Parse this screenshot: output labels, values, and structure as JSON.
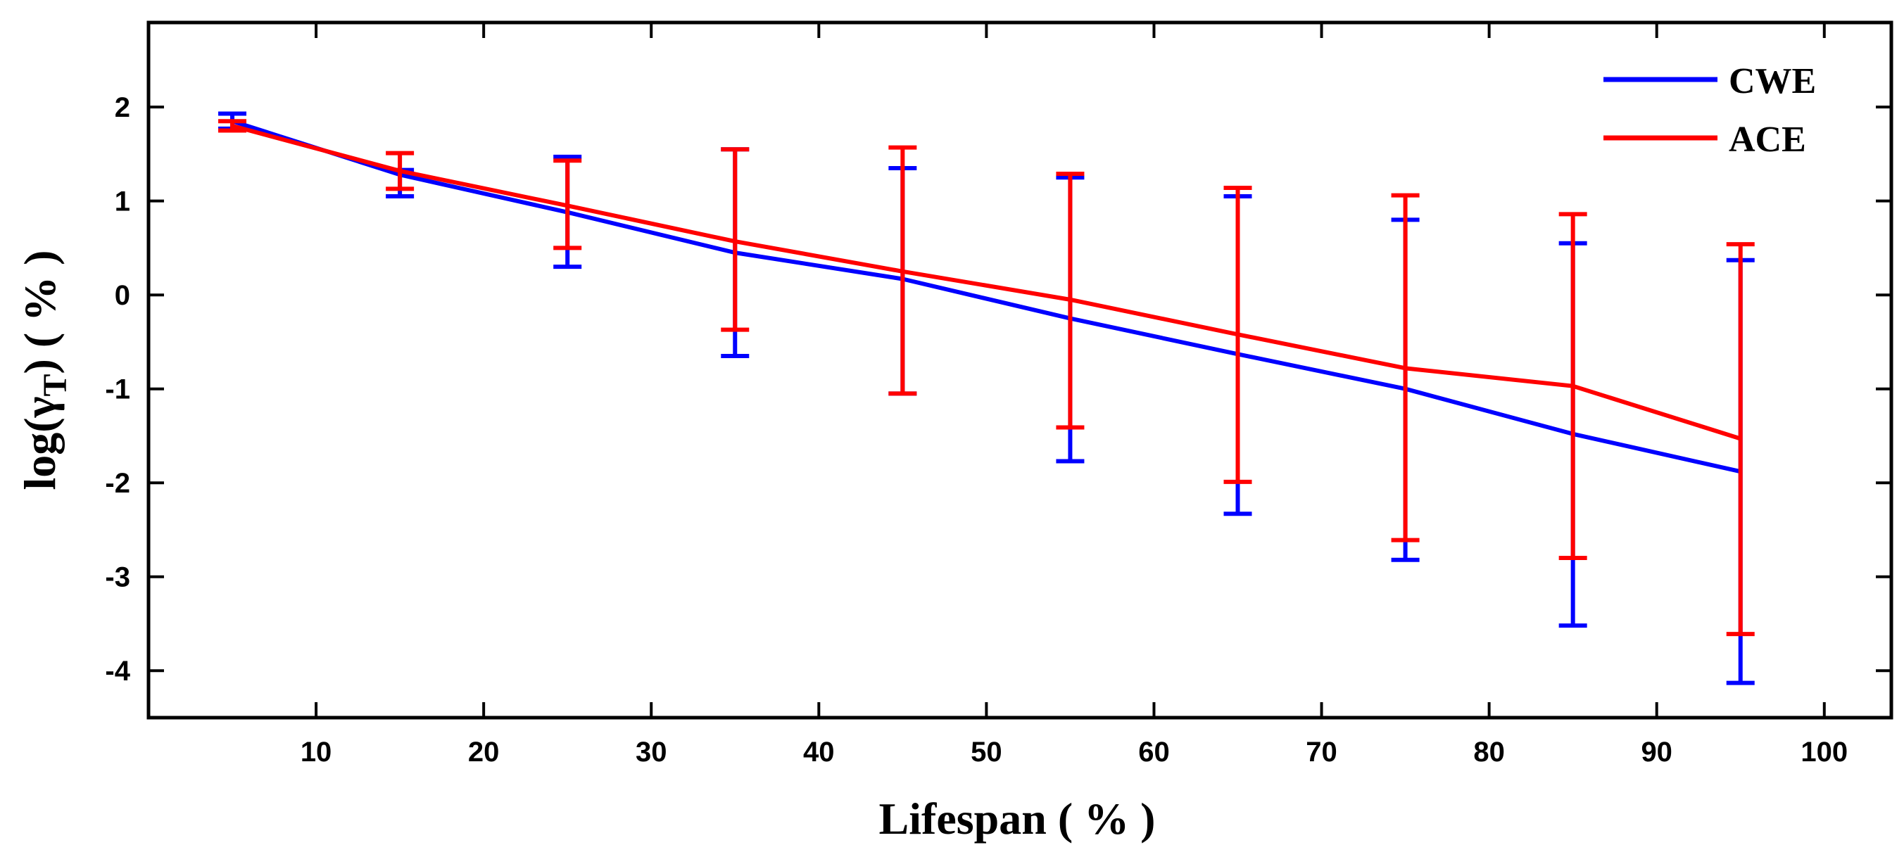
{
  "chart_data": {
    "type": "line",
    "title": "",
    "xlabel": "Lifespan ( % )",
    "ylabel": {
      "prefix": "log(γ",
      "subscript": "T",
      "suffix": ")   ( % )"
    },
    "xlim": [
      0,
      104
    ],
    "ylim": [
      -4.5,
      2.9
    ],
    "xticks": [
      10,
      20,
      30,
      40,
      50,
      60,
      70,
      80,
      90,
      100
    ],
    "yticks": [
      -4,
      -3,
      -2,
      -1,
      0,
      1,
      2
    ],
    "x": [
      5,
      15,
      25,
      35,
      45,
      55,
      65,
      75,
      85,
      95
    ],
    "series": [
      {
        "name": "CWE",
        "color": "#0000ff",
        "values": [
          1.85,
          1.28,
          0.88,
          0.45,
          0.17,
          -0.25,
          -0.63,
          -1.0,
          -1.48,
          -1.88
        ],
        "err_upper": [
          1.93,
          1.33,
          1.47,
          1.55,
          1.35,
          1.25,
          1.05,
          0.8,
          0.55,
          0.37
        ],
        "err_lower": [
          1.77,
          1.05,
          0.3,
          -0.65,
          -1.05,
          -1.77,
          -2.33,
          -2.82,
          -3.52,
          -4.13
        ]
      },
      {
        "name": "ACE",
        "color": "#ff0000",
        "values": [
          1.8,
          1.32,
          0.95,
          0.57,
          0.25,
          -0.05,
          -0.42,
          -0.78,
          -0.97,
          -1.53
        ],
        "err_upper": [
          1.85,
          1.51,
          1.43,
          1.55,
          1.57,
          1.29,
          1.14,
          1.06,
          0.86,
          0.54
        ],
        "err_lower": [
          1.75,
          1.13,
          0.5,
          -0.37,
          -1.05,
          -1.41,
          -1.99,
          -2.61,
          -2.8,
          -3.61
        ]
      }
    ],
    "legend": {
      "position": "top-right",
      "entries": [
        "CWE",
        "ACE"
      ]
    },
    "grid": false
  }
}
